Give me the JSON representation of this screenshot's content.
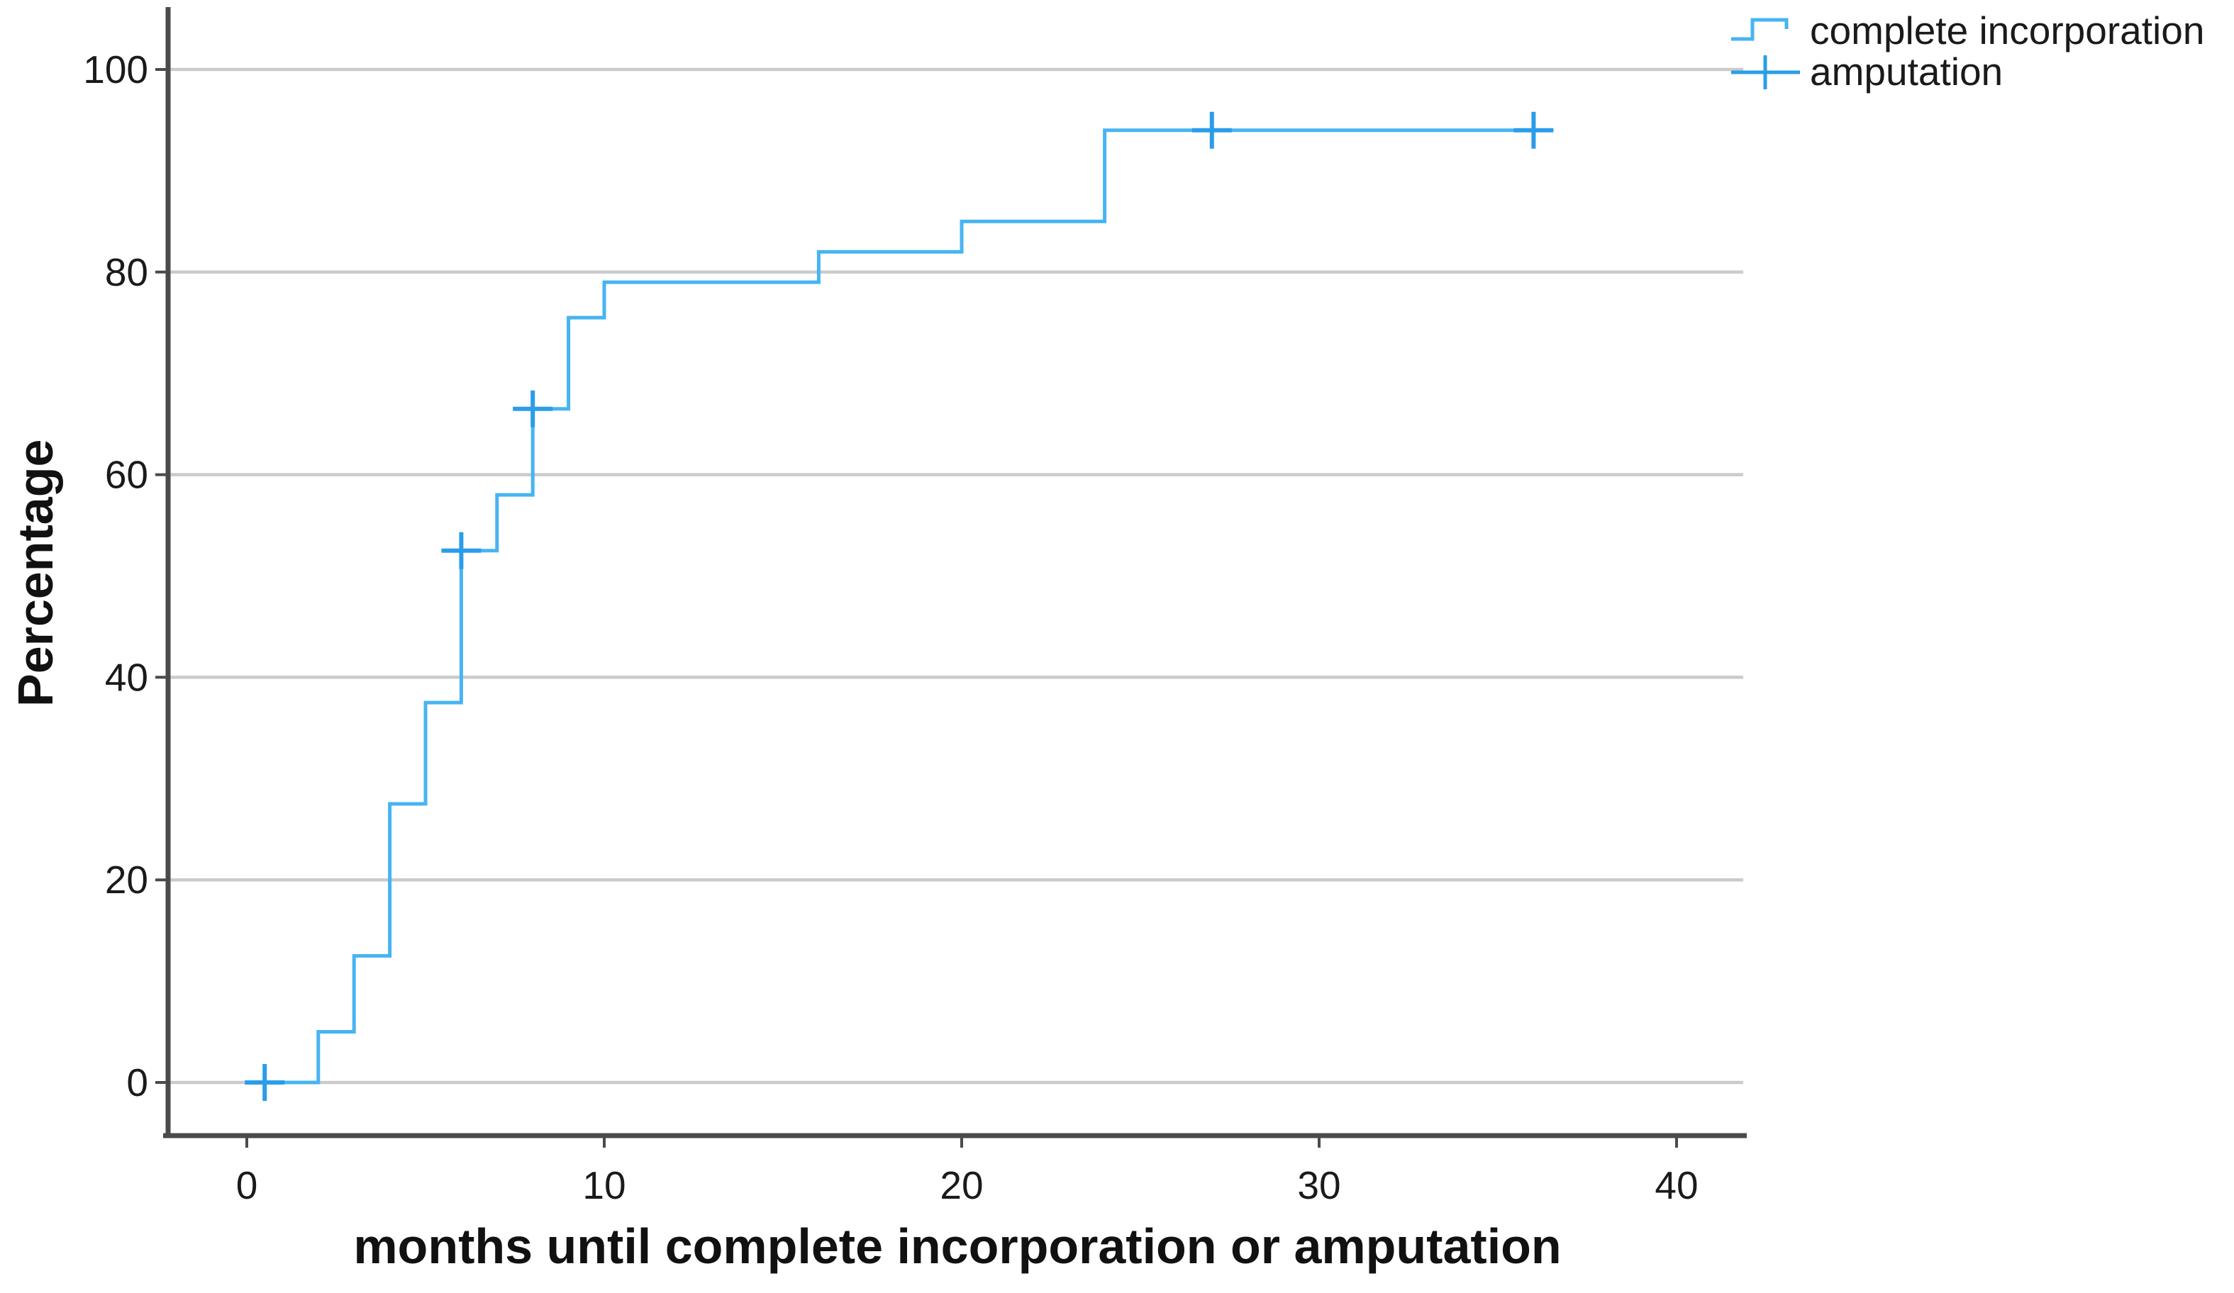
{
  "chart_data": {
    "type": "line",
    "subtype": "kaplan-meier-step-cumulative-incidence",
    "title": "",
    "xlabel": "months until complete incorporation or amputation",
    "ylabel": "Percentage",
    "x_ticks": [
      0,
      10,
      20,
      30,
      40
    ],
    "y_ticks": [
      0,
      20,
      40,
      60,
      80,
      100
    ],
    "xlim": [
      -2.3,
      42
    ],
    "ylim": [
      -7,
      108
    ],
    "grid": true,
    "legend_position": "top-right",
    "series": [
      {
        "name": "complete incorporation",
        "style": "step-line",
        "points": [
          [
            0,
            0
          ],
          [
            2,
            0
          ],
          [
            2,
            5
          ],
          [
            3,
            5
          ],
          [
            3,
            12.5
          ],
          [
            4,
            12.5
          ],
          [
            4,
            27.5
          ],
          [
            5,
            27.5
          ],
          [
            5,
            37.5
          ],
          [
            6,
            37.5
          ],
          [
            6,
            52.5
          ],
          [
            7,
            52.5
          ],
          [
            7,
            58
          ],
          [
            8,
            58
          ],
          [
            8,
            66.5
          ],
          [
            9,
            66.5
          ],
          [
            9,
            75.5
          ],
          [
            10,
            75.5
          ],
          [
            10,
            79
          ],
          [
            16,
            79
          ],
          [
            16,
            82
          ],
          [
            20,
            82
          ],
          [
            20,
            85
          ],
          [
            24,
            85
          ],
          [
            24,
            94
          ],
          [
            36,
            94
          ]
        ]
      },
      {
        "name": "amputation",
        "style": "plus-censor-marks",
        "points": [
          [
            0.5,
            0
          ],
          [
            6,
            52.5
          ],
          [
            8,
            66.5
          ],
          [
            27,
            94
          ],
          [
            36,
            94
          ]
        ]
      }
    ],
    "colors": {
      "line": "#47b4f1",
      "censor": "#2a9de9",
      "grid": "#cbcbcb",
      "axis": "#4a4a4a",
      "text": "#1a1a1a"
    }
  },
  "legend": {
    "items": [
      {
        "label": "complete incorporation",
        "symbol": "step-line"
      },
      {
        "label": "amputation",
        "symbol": "plus-line"
      }
    ]
  }
}
